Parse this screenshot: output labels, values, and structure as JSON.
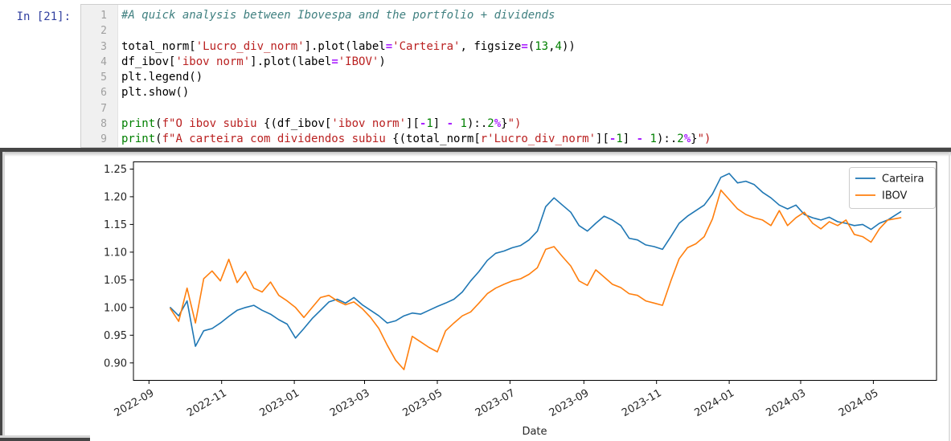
{
  "notebook": {
    "prompt": "In [21]:",
    "code_lines": [
      {
        "num": "1",
        "tokens": [
          [
            "#A quick analysis between Ibovespa and the portfolio + dividends",
            "c"
          ]
        ]
      },
      {
        "num": "2",
        "tokens": []
      },
      {
        "num": "3",
        "tokens": [
          [
            "total_norm[",
            "p"
          ],
          [
            "'Lucro_div_norm'",
            "s"
          ],
          [
            "].plot(label",
            "p"
          ],
          [
            "=",
            "o"
          ],
          [
            "'Carteira'",
            "s"
          ],
          [
            ", figsize",
            "p"
          ],
          [
            "=",
            "o"
          ],
          [
            "(",
            "p"
          ],
          [
            "13",
            "n"
          ],
          [
            ",",
            "p"
          ],
          [
            "4",
            "n"
          ],
          [
            "))",
            "p"
          ]
        ]
      },
      {
        "num": "4",
        "tokens": [
          [
            "df_ibov[",
            "p"
          ],
          [
            "'ibov norm'",
            "s"
          ],
          [
            "].plot(label",
            "p"
          ],
          [
            "=",
            "o"
          ],
          [
            "'IBOV'",
            "s"
          ],
          [
            ")",
            "p"
          ]
        ]
      },
      {
        "num": "5",
        "tokens": [
          [
            "plt.legend()",
            "p"
          ]
        ]
      },
      {
        "num": "6",
        "tokens": [
          [
            "plt.show()",
            "p"
          ]
        ]
      },
      {
        "num": "7",
        "tokens": []
      },
      {
        "num": "8",
        "tokens": [
          [
            "print",
            "b"
          ],
          [
            "(",
            "p"
          ],
          [
            "f\"O ibov subiu ",
            "s"
          ],
          [
            "{(df_ibov[",
            "p"
          ],
          [
            "'ibov norm'",
            "s"
          ],
          [
            "][",
            "p"
          ],
          [
            "-",
            "o"
          ],
          [
            "1",
            "n"
          ],
          [
            "] ",
            "p"
          ],
          [
            "-",
            "o"
          ],
          [
            " ",
            "p"
          ],
          [
            "1",
            "n"
          ],
          [
            "):",
            "p"
          ],
          [
            ".",
            "p"
          ],
          [
            "2",
            "n"
          ],
          [
            "%",
            "o"
          ],
          [
            "}",
            "p"
          ],
          [
            "\")",
            "s"
          ]
        ]
      },
      {
        "num": "9",
        "tokens": [
          [
            "print",
            "b"
          ],
          [
            "(",
            "p"
          ],
          [
            "f\"A carteira com dividendos subiu ",
            "s"
          ],
          [
            "{(total_norm[",
            "p"
          ],
          [
            "r'Lucro_div_norm'",
            "s"
          ],
          [
            "][",
            "p"
          ],
          [
            "-",
            "o"
          ],
          [
            "1",
            "n"
          ],
          [
            "] ",
            "p"
          ],
          [
            "-",
            "o"
          ],
          [
            " ",
            "p"
          ],
          [
            "1",
            "n"
          ],
          [
            "):",
            "p"
          ],
          [
            ".",
            "p"
          ],
          [
            "2",
            "n"
          ],
          [
            "%",
            "o"
          ],
          [
            "}",
            "p"
          ],
          [
            "\")",
            "s"
          ]
        ]
      }
    ]
  },
  "colors": {
    "prompt_blue": "#303F9F",
    "carteira_blue": "#1f77b4",
    "ibov_orange": "#ff7f0e",
    "axis_black": "#000000",
    "tick_text": "#262626",
    "legend_border": "#cccccc",
    "frame_gray": "#464646"
  },
  "chart_data": {
    "type": "line",
    "title": "",
    "xlabel": "Date",
    "ylabel": "",
    "grid": false,
    "legend_position": "upper right",
    "x_tick_labels": [
      "2022-09",
      "2022-11",
      "2023-01",
      "2023-03",
      "2023-05",
      "2023-07",
      "2023-09",
      "2023-11",
      "2024-01",
      "2024-03",
      "2024-05"
    ],
    "x_tick_dates": [
      "2022-09-01",
      "2022-11-01",
      "2023-01-01",
      "2023-03-01",
      "2023-05-01",
      "2023-07-01",
      "2023-09-01",
      "2023-11-01",
      "2024-01-01",
      "2024-03-01",
      "2024-05-01"
    ],
    "y_ticks": [
      0.9,
      0.95,
      1.0,
      1.05,
      1.1,
      1.15,
      1.2,
      1.25
    ],
    "ylim": [
      0.8685,
      1.263
    ],
    "xlim": [
      "2022-08-19",
      "2024-06-23"
    ],
    "x": [
      "2022-09-19",
      "2022-09-26",
      "2022-10-03",
      "2022-10-10",
      "2022-10-17",
      "2022-10-24",
      "2022-10-31",
      "2022-11-07",
      "2022-11-14",
      "2022-11-21",
      "2022-11-28",
      "2022-12-05",
      "2022-12-12",
      "2022-12-19",
      "2022-12-26",
      "2023-01-02",
      "2023-01-09",
      "2023-01-16",
      "2023-01-23",
      "2023-01-30",
      "2023-02-06",
      "2023-02-13",
      "2023-02-20",
      "2023-02-27",
      "2023-03-06",
      "2023-03-13",
      "2023-03-20",
      "2023-03-27",
      "2023-04-03",
      "2023-04-10",
      "2023-04-17",
      "2023-04-24",
      "2023-05-01",
      "2023-05-08",
      "2023-05-15",
      "2023-05-22",
      "2023-05-29",
      "2023-06-05",
      "2023-06-12",
      "2023-06-19",
      "2023-06-26",
      "2023-07-03",
      "2023-07-10",
      "2023-07-17",
      "2023-07-24",
      "2023-07-31",
      "2023-08-07",
      "2023-08-14",
      "2023-08-21",
      "2023-08-28",
      "2023-09-04",
      "2023-09-11",
      "2023-09-18",
      "2023-09-25",
      "2023-10-02",
      "2023-10-09",
      "2023-10-16",
      "2023-10-23",
      "2023-10-30",
      "2023-11-06",
      "2023-11-13",
      "2023-11-20",
      "2023-11-27",
      "2023-12-04",
      "2023-12-11",
      "2023-12-18",
      "2023-12-25",
      "2024-01-01",
      "2024-01-08",
      "2024-01-15",
      "2024-01-22",
      "2024-01-29",
      "2024-02-05",
      "2024-02-12",
      "2024-02-19",
      "2024-02-26",
      "2024-03-04",
      "2024-03-11",
      "2024-03-18",
      "2024-03-25",
      "2024-04-01",
      "2024-04-08",
      "2024-04-15",
      "2024-04-22",
      "2024-04-29",
      "2024-05-06",
      "2024-05-13",
      "2024-05-24"
    ],
    "series": [
      {
        "name": "Carteira",
        "color": "#1f77b4",
        "values": [
          1.0,
          0.985,
          1.012,
          0.93,
          0.958,
          0.962,
          0.972,
          0.984,
          0.995,
          1.0,
          1.004,
          0.995,
          0.988,
          0.978,
          0.97,
          0.945,
          0.962,
          0.98,
          0.995,
          1.01,
          1.015,
          1.008,
          1.018,
          1.005,
          0.995,
          0.985,
          0.972,
          0.976,
          0.985,
          0.99,
          0.988,
          0.995,
          1.002,
          1.008,
          1.015,
          1.028,
          1.048,
          1.065,
          1.085,
          1.098,
          1.102,
          1.108,
          1.112,
          1.122,
          1.138,
          1.182,
          1.198,
          1.185,
          1.172,
          1.148,
          1.138,
          1.152,
          1.165,
          1.158,
          1.148,
          1.125,
          1.122,
          1.113,
          1.11,
          1.105,
          1.128,
          1.152,
          1.165,
          1.175,
          1.185,
          1.205,
          1.235,
          1.242,
          1.225,
          1.228,
          1.222,
          1.208,
          1.198,
          1.185,
          1.178,
          1.185,
          1.168,
          1.162,
          1.158,
          1.163,
          1.155,
          1.152,
          1.148,
          1.15,
          1.141,
          1.152,
          1.158,
          1.173
        ]
      },
      {
        "name": "IBOV",
        "color": "#ff7f0e",
        "values": [
          0.998,
          0.975,
          1.035,
          0.972,
          1.052,
          1.066,
          1.048,
          1.087,
          1.045,
          1.065,
          1.035,
          1.028,
          1.046,
          1.022,
          1.012,
          1.0,
          0.982,
          1.0,
          1.018,
          1.022,
          1.012,
          1.005,
          1.01,
          0.998,
          0.982,
          0.962,
          0.932,
          0.905,
          0.888,
          0.948,
          0.938,
          0.928,
          0.92,
          0.958,
          0.972,
          0.985,
          0.992,
          1.008,
          1.025,
          1.035,
          1.042,
          1.048,
          1.052,
          1.06,
          1.072,
          1.105,
          1.11,
          1.092,
          1.075,
          1.048,
          1.04,
          1.068,
          1.055,
          1.042,
          1.036,
          1.025,
          1.022,
          1.012,
          1.008,
          1.004,
          1.048,
          1.088,
          1.108,
          1.115,
          1.128,
          1.16,
          1.212,
          1.195,
          1.178,
          1.168,
          1.162,
          1.158,
          1.148,
          1.175,
          1.148,
          1.162,
          1.172,
          1.152,
          1.142,
          1.155,
          1.148,
          1.158,
          1.132,
          1.128,
          1.118,
          1.142,
          1.158,
          1.162
        ]
      }
    ]
  }
}
